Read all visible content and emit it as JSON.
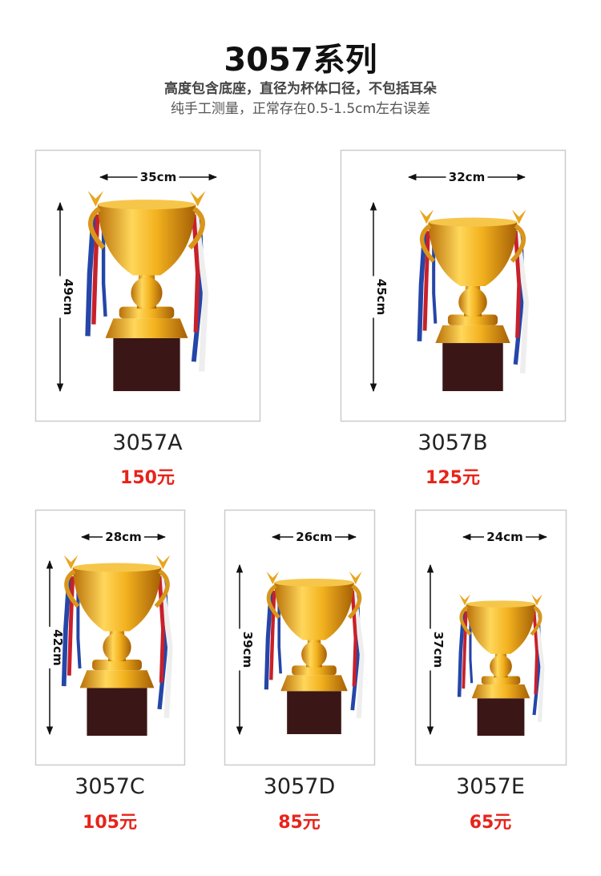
{
  "header": {
    "title": "3057系列",
    "lines": [
      "高度包含底座，直径为杯体口径，不包括耳朵",
      "纯手工测量，正常存在0.5-1.5cm左右误差"
    ]
  },
  "products": [
    {
      "model": "3057A",
      "price": "150元",
      "width": "35cm",
      "height": "49cm"
    },
    {
      "model": "3057B",
      "price": "125元",
      "width": "32cm",
      "height": "45cm"
    },
    {
      "model": "3057C",
      "price": "105元",
      "width": "28cm",
      "height": "42cm"
    },
    {
      "model": "3057D",
      "price": "85元",
      "width": "26cm",
      "height": "39cm"
    },
    {
      "model": "3057E",
      "price": "65元",
      "width": "24cm",
      "height": "37cm"
    }
  ]
}
